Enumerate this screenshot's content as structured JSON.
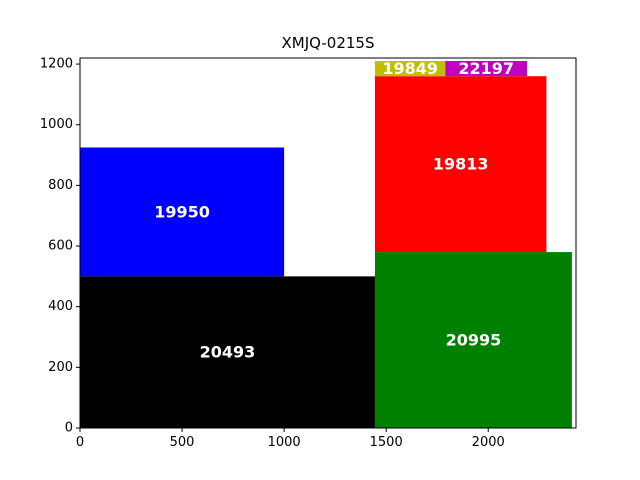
{
  "chart_data": {
    "type": "treemap",
    "title": "XMJQ-0215S",
    "xlim": [
      0,
      2430
    ],
    "ylim": [
      0,
      1220
    ],
    "xticks": [
      0,
      500,
      1000,
      1500,
      2000
    ],
    "yticks": [
      0,
      200,
      400,
      600,
      800,
      1000,
      1200
    ],
    "grid": false,
    "rects": [
      {
        "label": "20493",
        "x0": 0,
        "y0": 0,
        "x1": 1445,
        "y1": 500,
        "color": "#000000"
      },
      {
        "label": "19950",
        "x0": 0,
        "y0": 500,
        "x1": 1000,
        "y1": 925,
        "color": "#0000ff"
      },
      {
        "label": "20995",
        "x0": 1445,
        "y0": 0,
        "x1": 2410,
        "y1": 580,
        "color": "#008000"
      },
      {
        "label": "19813",
        "x0": 1445,
        "y0": 580,
        "x1": 2285,
        "y1": 1160,
        "color": "#ff0000"
      },
      {
        "label": "19849",
        "x0": 1445,
        "y0": 1160,
        "x1": 1790,
        "y1": 1210,
        "color": "#bfbf00"
      },
      {
        "label": "22197",
        "x0": 1790,
        "y0": 1160,
        "x1": 2190,
        "y1": 1210,
        "color": "#bf00bf"
      }
    ]
  }
}
